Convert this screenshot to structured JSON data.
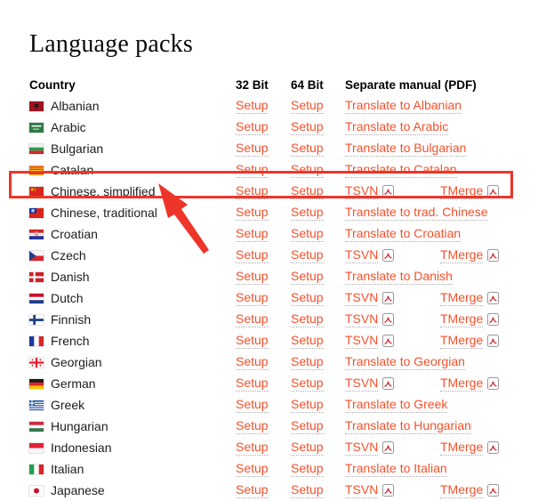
{
  "page": {
    "title": "Language packs"
  },
  "colors": {
    "link": "#f4512c",
    "annotation_red": "#ee352a",
    "text": "#1c1c1c"
  },
  "table": {
    "headers": {
      "country": "Country",
      "bit32": "32 Bit",
      "bit64": "64 Bit",
      "manual": "Separate manual (PDF)"
    },
    "setup_label": "Setup",
    "rows": [
      {
        "country": "Albanian",
        "flag": "albania",
        "manual": {
          "type": "translate",
          "label": "Translate to Albanian"
        }
      },
      {
        "country": "Arabic",
        "flag": "saudi",
        "manual": {
          "type": "translate",
          "label": "Translate to Arabic"
        }
      },
      {
        "country": "Bulgarian",
        "flag": "bulgaria",
        "manual": {
          "type": "translate",
          "label": "Translate to Bulgarian"
        }
      },
      {
        "country": "Catalan",
        "flag": "catalonia",
        "manual": {
          "type": "translate",
          "label": "Translate to Catalan"
        }
      },
      {
        "country": "Chinese, simplified",
        "flag": "china",
        "highlighted": true,
        "manual": {
          "type": "pdf",
          "tsvn_label": "TSVN",
          "tmerge_label": "TMerge"
        }
      },
      {
        "country": "Chinese, traditional",
        "flag": "taiwan",
        "manual": {
          "type": "translate",
          "label": "Translate to trad. Chinese"
        }
      },
      {
        "country": "Croatian",
        "flag": "croatia",
        "manual": {
          "type": "translate",
          "label": "Translate to Croatian"
        }
      },
      {
        "country": "Czech",
        "flag": "czech",
        "manual": {
          "type": "pdf",
          "tsvn_label": "TSVN",
          "tmerge_label": "TMerge"
        }
      },
      {
        "country": "Danish",
        "flag": "denmark",
        "manual": {
          "type": "translate",
          "label": "Translate to Danish"
        }
      },
      {
        "country": "Dutch",
        "flag": "netherlands",
        "manual": {
          "type": "pdf",
          "tsvn_label": "TSVN",
          "tmerge_label": "TMerge"
        }
      },
      {
        "country": "Finnish",
        "flag": "finland",
        "manual": {
          "type": "pdf",
          "tsvn_label": "TSVN",
          "tmerge_label": "TMerge"
        }
      },
      {
        "country": "French",
        "flag": "france",
        "manual": {
          "type": "pdf",
          "tsvn_label": "TSVN",
          "tmerge_label": "TMerge"
        }
      },
      {
        "country": "Georgian",
        "flag": "georgia",
        "manual": {
          "type": "translate",
          "label": "Translate to Georgian"
        }
      },
      {
        "country": "German",
        "flag": "germany",
        "manual": {
          "type": "pdf",
          "tsvn_label": "TSVN",
          "tmerge_label": "TMerge"
        }
      },
      {
        "country": "Greek",
        "flag": "greece",
        "manual": {
          "type": "translate",
          "label": "Translate to Greek"
        }
      },
      {
        "country": "Hungarian",
        "flag": "hungary",
        "manual": {
          "type": "translate",
          "label": "Translate to Hungarian"
        }
      },
      {
        "country": "Indonesian",
        "flag": "indonesia",
        "manual": {
          "type": "pdf",
          "tsvn_label": "TSVN",
          "tmerge_label": "TMerge"
        }
      },
      {
        "country": "Italian",
        "flag": "italy",
        "manual": {
          "type": "translate",
          "label": "Translate to Italian"
        }
      },
      {
        "country": "Japanese",
        "flag": "japan",
        "manual": {
          "type": "pdf",
          "tsvn_label": "TSVN",
          "tmerge_label": "TMerge"
        }
      }
    ]
  },
  "annotation": {
    "highlighted_row": "Chinese, simplified"
  }
}
